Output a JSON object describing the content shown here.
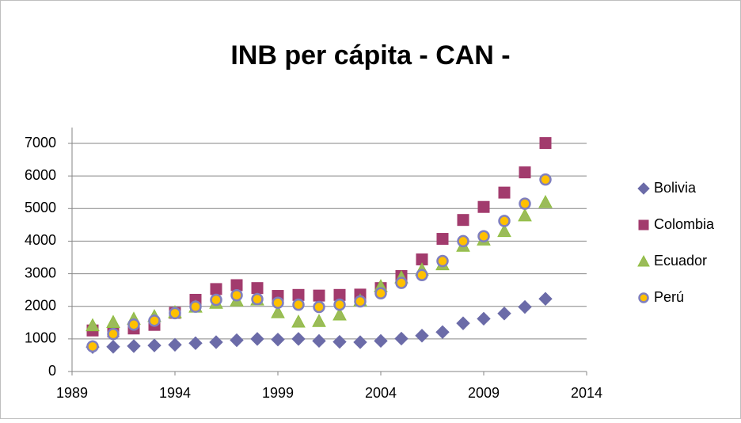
{
  "chart_data": {
    "type": "scatter",
    "title": "INB per cápita - CAN -",
    "x": [
      1990,
      1991,
      1992,
      1993,
      1994,
      1995,
      1996,
      1997,
      1998,
      1999,
      2000,
      2001,
      2002,
      2003,
      2004,
      2005,
      2006,
      2007,
      2008,
      2009,
      2010,
      2011,
      2012
    ],
    "series": [
      {
        "name": "Bolivia",
        "color": "#6b6ba8",
        "marker": "diamond",
        "values": [
          750,
          760,
          780,
          800,
          820,
          870,
          900,
          960,
          1000,
          980,
          1000,
          940,
          910,
          900,
          940,
          1010,
          1100,
          1210,
          1480,
          1620,
          1780,
          1980,
          2230
        ]
      },
      {
        "name": "Colombia",
        "color": "#a23b6d",
        "marker": "square",
        "values": [
          1260,
          1230,
          1320,
          1430,
          1800,
          2200,
          2530,
          2650,
          2560,
          2320,
          2350,
          2330,
          2350,
          2360,
          2560,
          2930,
          3440,
          4070,
          4650,
          5050,
          5490,
          6110,
          7010
        ]
      },
      {
        "name": "Ecuador",
        "color": "#9bbb59",
        "marker": "triangle",
        "values": [
          1420,
          1520,
          1620,
          1700,
          1820,
          1990,
          2110,
          2180,
          2210,
          1820,
          1530,
          1550,
          1750,
          2180,
          2620,
          2890,
          3130,
          3290,
          3860,
          4050,
          4310,
          4790,
          5200
        ]
      },
      {
        "name": "Perú",
        "color": "#ffc000",
        "marker": "circle",
        "values": [
          770,
          1150,
          1440,
          1560,
          1790,
          1990,
          2200,
          2340,
          2220,
          2110,
          2050,
          1980,
          2050,
          2150,
          2400,
          2720,
          2960,
          3390,
          4000,
          4150,
          4620,
          5150,
          5890
        ]
      }
    ],
    "xlim": [
      1989,
      2014
    ],
    "xticks": [
      1989,
      1994,
      1999,
      2004,
      2009,
      2014
    ],
    "ylim": [
      0,
      7000
    ],
    "yticks": [
      0,
      1000,
      2000,
      3000,
      4000,
      5000,
      6000,
      7000
    ],
    "grid": true,
    "legend": "right"
  }
}
